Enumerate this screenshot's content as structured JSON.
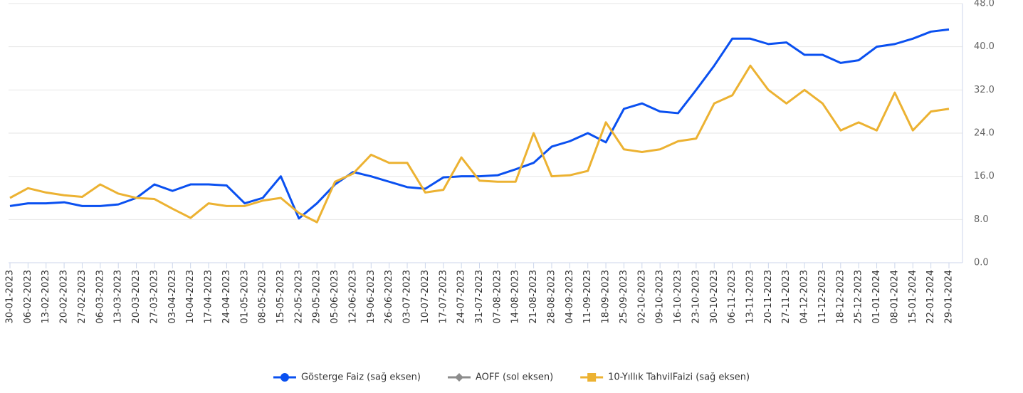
{
  "chart_data": {
    "type": "line",
    "categories": [
      "30-01-2023",
      "06-02-2023",
      "13-02-2023",
      "20-02-2023",
      "27-02-2023",
      "06-03-2023",
      "13-03-2023",
      "20-03-2023",
      "27-03-2023",
      "03-04-2023",
      "10-04-2023",
      "17-04-2023",
      "24-04-2023",
      "01-05-2023",
      "08-05-2023",
      "15-05-2023",
      "22-05-2023",
      "29-05-2023",
      "05-06-2023",
      "12-06-2023",
      "19-06-2023",
      "26-06-2023",
      "03-07-2023",
      "10-07-2023",
      "17-07-2023",
      "24-07-2023",
      "31-07-2023",
      "07-08-2023",
      "14-08-2023",
      "21-08-2023",
      "28-08-2023",
      "04-09-2023",
      "11-09-2023",
      "18-09-2023",
      "25-09-2023",
      "02-10-2023",
      "09-10-2023",
      "16-10-2023",
      "23-10-2023",
      "30-10-2023",
      "06-11-2023",
      "13-11-2023",
      "20-11-2023",
      "27-11-2023",
      "04-12-2023",
      "11-12-2023",
      "18-12-2023",
      "25-12-2023",
      "01-01-2024",
      "08-01-2024",
      "15-01-2024",
      "22-01-2024",
      "29-01-2024"
    ],
    "series": [
      {
        "name": "Gösterge Faiz (sağ eksen)",
        "color": "#0a50f0",
        "marker": "circle",
        "values": [
          10.5,
          11,
          11,
          11.2,
          10.5,
          10.5,
          10.8,
          12,
          14.5,
          13.3,
          14.5,
          14.5,
          14.3,
          11,
          12,
          16,
          8.2,
          11,
          14.5,
          16.8,
          16,
          15,
          14,
          13.7,
          15.8,
          16,
          16,
          16.2,
          17.3,
          18.5,
          21.5,
          22.5,
          24,
          22.3,
          28.5,
          29.5,
          28,
          27.7,
          32,
          36.5,
          41.5,
          41.5,
          40.5,
          40.8,
          38.5,
          38.5,
          37,
          37.5,
          40,
          40.5,
          41.5,
          42.8,
          43.2
        ]
      },
      {
        "name": "AOFF (sol eksen)",
        "color": "#8c8c8c",
        "marker": "diamond",
        "values": [
          null,
          null,
          null,
          null,
          null,
          null,
          null,
          null,
          null,
          null,
          null,
          null,
          null,
          null,
          null,
          null,
          null,
          null,
          null,
          null,
          null,
          null,
          null,
          null,
          null,
          null,
          null,
          null,
          null,
          null,
          null,
          null,
          null,
          null,
          null,
          null,
          null,
          null,
          null,
          null,
          null,
          null,
          null,
          null,
          null,
          null,
          null,
          null,
          null,
          null,
          null,
          null,
          null
        ]
      },
      {
        "name": "10-Yıllık TahvilFaizi (sağ eksen)",
        "color": "#ecb232",
        "marker": "square",
        "values": [
          12,
          13.8,
          13,
          12.5,
          12.2,
          14.5,
          12.8,
          12,
          11.8,
          10,
          8.3,
          11,
          10.5,
          10.5,
          11.5,
          12,
          9.2,
          7.5,
          15,
          16.5,
          20,
          18.5,
          18.5,
          13,
          13.5,
          19.5,
          15.2,
          15,
          15,
          24,
          16,
          16.2,
          17,
          26,
          21,
          20.5,
          21,
          22.5,
          23,
          29.5,
          31,
          36.5,
          32,
          29.5,
          32,
          29.5,
          24.5,
          26,
          24.5,
          31.5,
          24.5,
          28,
          28.5
        ]
      }
    ],
    "ylim": [
      0,
      48
    ],
    "yticks": [
      {
        "value": 0,
        "label": "0.0"
      },
      {
        "value": 8,
        "label": "8.0"
      },
      {
        "value": 16,
        "label": "16.0"
      },
      {
        "value": 24,
        "label": "24.0"
      },
      {
        "value": 32,
        "label": "32.0"
      },
      {
        "value": 40,
        "label": "40.0"
      },
      {
        "value": 48,
        "label": "48.0"
      }
    ],
    "y_axis_side": "right",
    "grid": true,
    "legend": "bottom"
  }
}
